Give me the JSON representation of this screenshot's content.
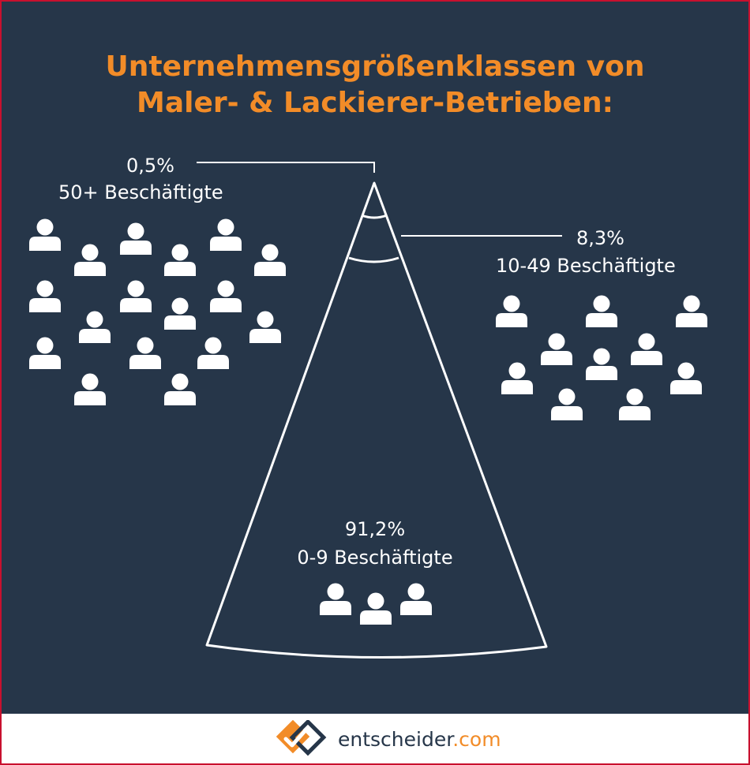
{
  "header": {
    "title_line1": "Unternehmensgrößenklassen von",
    "title_line2": "Maler- & Lackierer-Betrieben:"
  },
  "chart_data": {
    "type": "pie",
    "title": "Unternehmensgrößenklassen von Maler- & Lackierer-Betrieben:",
    "categories": [
      "50+ Beschäftigte",
      "10-49 Beschäftigte",
      "0-9 Beschäftigte"
    ],
    "values": [
      0.5,
      8.3,
      91.2
    ],
    "value_labels": [
      "0,5%",
      "8,3%",
      "91,2%"
    ],
    "unit": "%"
  },
  "segments": [
    {
      "name": "50+ Beschäftigte",
      "value_label": "0,5%"
    },
    {
      "name": "10-49 Beschäftigte",
      "value_label": "8,3%"
    },
    {
      "name": "0-9 Beschäftigte",
      "value_label": "91,2%"
    }
  ],
  "colors": {
    "background": "#263649",
    "accent": "#f28c28",
    "foreground": "#ffffff",
    "border": "#c8102e"
  },
  "icons": {
    "person": "person-icon",
    "logo": "checkmark-logo-icon"
  },
  "footer": {
    "brand_name": "entscheider",
    "brand_domain": ".com"
  }
}
